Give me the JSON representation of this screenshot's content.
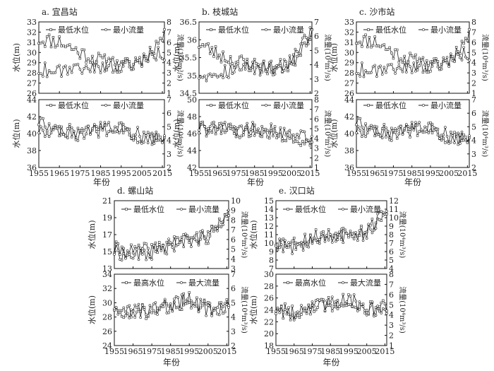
{
  "figure": {
    "year_axis_label": "年份",
    "level_axis_label": "水位(m)",
    "flow_axis_label_text": "流量(10⁴m³/s)"
  },
  "chart_data": [
    {
      "type": "line",
      "station": "a. 宜昌站",
      "position": "top",
      "ylim_left": [
        26,
        33
      ],
      "yticks_left": [
        26,
        27,
        28,
        29,
        30,
        31,
        32,
        33
      ],
      "ylim_right": [
        1,
        8
      ],
      "yticks_right": [
        1,
        2,
        3,
        4,
        5,
        6,
        7,
        8
      ],
      "series": [
        {
          "name": "最低水位",
          "axis": "left",
          "x": [
            1955,
            1965,
            1975,
            1985,
            1995,
            2005,
            2015
          ],
          "values": [
            31.3,
            31.1,
            30.0,
            29.2,
            28.5,
            29.2,
            31.5
          ]
        },
        {
          "name": "最小流量",
          "axis": "right",
          "x": [
            1955,
            1965,
            1975,
            1985,
            1995,
            2005,
            2015
          ],
          "values": [
            3.3,
            3.4,
            3.6,
            3.7,
            3.8,
            4.3,
            5.0
          ]
        }
      ]
    },
    {
      "type": "line",
      "station": "a. 宜昌站",
      "position": "bottom",
      "ylim_left": [
        36,
        44
      ],
      "yticks_left": [
        36,
        38,
        40,
        42,
        44
      ],
      "ylim_right": [
        2,
        7
      ],
      "yticks_right": [
        2,
        3,
        4,
        5,
        6,
        7
      ],
      "series": [
        {
          "name": "最低水位",
          "axis": "left",
          "x": [
            1955,
            1965,
            1975,
            1985,
            1995,
            2005,
            2015
          ],
          "values": [
            41.5,
            40.5,
            40.0,
            40.5,
            40.5,
            39.5,
            39.0
          ]
        },
        {
          "name": "最小流量",
          "axis": "right",
          "x": [
            1955,
            1965,
            1975,
            1985,
            1995,
            2005,
            2015
          ],
          "values": [
            4.8,
            4.5,
            4.4,
            4.8,
            4.9,
            4.3,
            4.0
          ]
        }
      ]
    },
    {
      "type": "line",
      "station": "b. 枝城站",
      "position": "top",
      "ylim_left": [
        34.5,
        36.5
      ],
      "yticks_left": [
        34.5,
        35.0,
        35.5,
        36.0,
        36.5
      ],
      "ylim_right": [
        2,
        7
      ],
      "yticks_right": [
        2,
        3,
        4,
        5,
        6,
        7
      ],
      "series": [
        {
          "name": "最低水位",
          "axis": "left",
          "x": [
            1955,
            1965,
            1975,
            1985,
            1995,
            2005,
            2015
          ],
          "values": [
            35.9,
            35.6,
            35.4,
            35.3,
            35.2,
            35.3,
            36.2
          ]
        },
        {
          "name": "最小流量",
          "axis": "right",
          "x": [
            1955,
            1965,
            1975,
            1985,
            1995,
            2005,
            2015
          ],
          "values": [
            3.3,
            3.5,
            3.7,
            3.8,
            3.8,
            4.2,
            6.2
          ]
        }
      ]
    },
    {
      "type": "line",
      "station": "b. 枝城站",
      "position": "bottom",
      "ylim_left": [
        42,
        50
      ],
      "yticks_left": [
        42,
        44,
        46,
        48,
        50
      ],
      "ylim_right": [
        1,
        8
      ],
      "yticks_right": [
        1,
        2,
        3,
        4,
        5,
        6,
        7,
        8
      ],
      "series": [
        {
          "name": "最低水位",
          "axis": "left",
          "x": [
            1955,
            1965,
            1975,
            1985,
            1995,
            2005,
            2015
          ],
          "values": [
            46.5,
            46.5,
            46.0,
            46.5,
            46.0,
            45.5,
            45.0
          ]
        },
        {
          "name": "最小流量",
          "axis": "right",
          "x": [
            1955,
            1965,
            1975,
            1985,
            1995,
            2005,
            2015
          ],
          "values": [
            5.2,
            5.0,
            4.8,
            5.0,
            4.8,
            4.5,
            4.2
          ]
        }
      ]
    },
    {
      "type": "line",
      "station": "c. 沙市站",
      "position": "top",
      "ylim_left": [
        26,
        33
      ],
      "yticks_left": [
        26,
        27,
        28,
        29,
        30,
        31,
        32,
        33
      ],
      "ylim_right": [
        1,
        8
      ],
      "yticks_right": [
        1,
        2,
        3,
        4,
        5,
        6,
        7,
        8
      ],
      "series": [
        {
          "name": "最低水位",
          "axis": "left",
          "x": [
            1955,
            1965,
            1975,
            1985,
            1995,
            2005,
            2015
          ],
          "values": [
            31.3,
            31.1,
            30.0,
            29.2,
            28.5,
            29.2,
            31.5
          ]
        },
        {
          "name": "最小流量",
          "axis": "right",
          "x": [
            1955,
            1965,
            1975,
            1985,
            1995,
            2005,
            2015
          ],
          "values": [
            3.3,
            3.4,
            3.6,
            3.7,
            3.8,
            4.3,
            5.0
          ]
        }
      ]
    },
    {
      "type": "line",
      "station": "c. 沙市站",
      "position": "bottom",
      "ylim_left": [
        36,
        44
      ],
      "yticks_left": [
        36,
        38,
        40,
        42,
        44
      ],
      "ylim_right": [
        2,
        7
      ],
      "yticks_right": [
        2,
        3,
        4,
        5,
        6,
        7
      ],
      "series": [
        {
          "name": "最低水位",
          "axis": "left",
          "x": [
            1955,
            1965,
            1975,
            1985,
            1995,
            2005,
            2015
          ],
          "values": [
            41.5,
            40.5,
            40.0,
            40.5,
            40.5,
            39.5,
            39.0
          ]
        },
        {
          "name": "最小流量",
          "axis": "right",
          "x": [
            1955,
            1965,
            1975,
            1985,
            1995,
            2005,
            2015
          ],
          "values": [
            4.8,
            4.5,
            4.4,
            4.8,
            4.9,
            4.3,
            4.0
          ]
        }
      ]
    },
    {
      "type": "line",
      "station": "d. 螺山站",
      "position": "top",
      "ylim_left": [
        13,
        21
      ],
      "yticks_left": [
        13,
        15,
        17,
        19,
        21
      ],
      "ylim_right": [
        3,
        10
      ],
      "yticks_right": [
        3,
        4,
        5,
        6,
        7,
        8,
        9,
        10
      ],
      "series": [
        {
          "name": "最低水位",
          "axis": "left",
          "x": [
            1955,
            1965,
            1975,
            1985,
            1995,
            2005,
            2015
          ],
          "values": [
            15.3,
            15.0,
            15.2,
            16.0,
            16.5,
            16.8,
            18.8
          ]
        },
        {
          "name": "最小流量",
          "axis": "right",
          "x": [
            1955,
            1965,
            1975,
            1985,
            1995,
            2005,
            2015
          ],
          "values": [
            4.8,
            4.3,
            4.6,
            5.4,
            5.9,
            6.3,
            8.6
          ]
        }
      ]
    },
    {
      "type": "line",
      "station": "d. 螺山站",
      "position": "bottom",
      "ylim_left": [
        24,
        34
      ],
      "yticks_left": [
        24,
        26,
        28,
        30,
        32,
        34
      ],
      "ylim_right": [
        2,
        7
      ],
      "yticks_right": [
        2,
        3,
        4,
        5,
        6,
        7
      ],
      "series": [
        {
          "name": "最高水位",
          "axis": "left",
          "x": [
            1955,
            1965,
            1975,
            1985,
            1995,
            2005,
            2015
          ],
          "values": [
            29.5,
            28.5,
            29.0,
            29.5,
            30.5,
            29.0,
            29.5
          ]
        },
        {
          "name": "最大流量",
          "axis": "right",
          "x": [
            1955,
            1965,
            1975,
            1985,
            1995,
            2005,
            2015
          ],
          "values": [
            4.8,
            4.3,
            4.6,
            4.8,
            5.2,
            4.5,
            4.6
          ]
        }
      ]
    },
    {
      "type": "line",
      "station": "e. 汉口站",
      "position": "top",
      "ylim_left": [
        7,
        15
      ],
      "yticks_left": [
        7,
        8,
        9,
        10,
        11,
        12,
        13,
        14,
        15
      ],
      "ylim_right": [
        4,
        12
      ],
      "yticks_right": [
        4,
        5,
        6,
        7,
        8,
        9,
        10,
        11,
        12
      ],
      "series": [
        {
          "name": "最低水位",
          "axis": "left",
          "x": [
            1955,
            1965,
            1975,
            1985,
            1995,
            2005,
            2015
          ],
          "values": [
            10.2,
            10.0,
            10.8,
            11.0,
            11.5,
            11.6,
            13.5
          ]
        },
        {
          "name": "最小流量",
          "axis": "right",
          "x": [
            1955,
            1965,
            1975,
            1985,
            1995,
            2005,
            2015
          ],
          "values": [
            7.0,
            6.5,
            7.2,
            7.6,
            8.0,
            8.2,
            10.8
          ]
        }
      ]
    },
    {
      "type": "line",
      "station": "e. 汉口站",
      "position": "bottom",
      "ylim_left": [
        18,
        30
      ],
      "yticks_left": [
        18,
        20,
        22,
        24,
        26,
        28,
        30
      ],
      "ylim_right": [
        1,
        8
      ],
      "yticks_right": [
        1,
        2,
        3,
        4,
        5,
        6,
        7,
        8
      ],
      "series": [
        {
          "name": "最高水位",
          "axis": "left",
          "x": [
            1955,
            1965,
            1975,
            1985,
            1995,
            2005,
            2015
          ],
          "values": [
            24.0,
            23.5,
            24.5,
            25.0,
            26.0,
            24.5,
            24.5
          ]
        },
        {
          "name": "最大流量",
          "axis": "right",
          "x": [
            1955,
            1965,
            1975,
            1985,
            1995,
            2005,
            2015
          ],
          "values": [
            4.7,
            4.2,
            4.8,
            5.0,
            5.6,
            4.6,
            4.5
          ]
        }
      ]
    }
  ],
  "legend": {
    "low_level": "最低水位",
    "min_flow": "最小流量",
    "high_level": "最高水位",
    "max_flow": "最大流量"
  },
  "xaxis": {
    "ticks": [
      1955,
      1965,
      1975,
      1985,
      1995,
      2005,
      2015
    ],
    "range": [
      1955,
      2016
    ]
  }
}
